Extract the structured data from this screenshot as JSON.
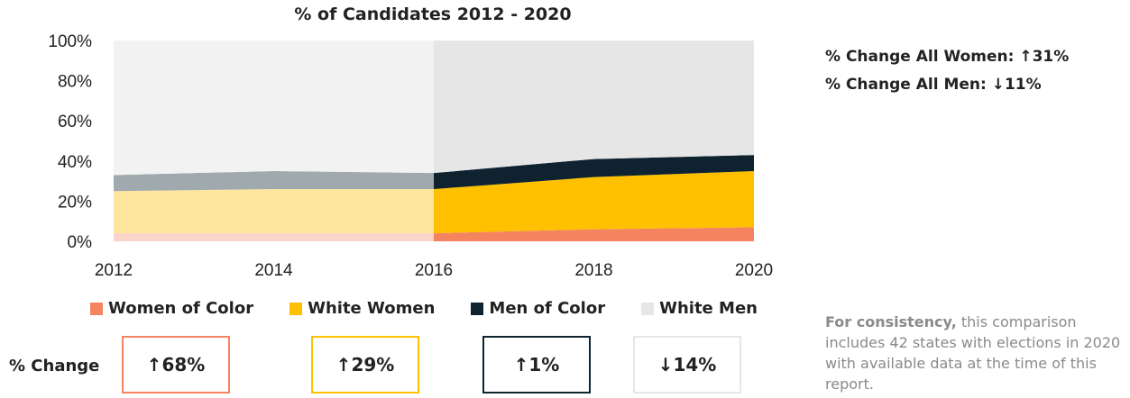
{
  "chart_data": {
    "type": "area",
    "title": "% of Candidates 2012 - 2020",
    "x": [
      2012,
      2014,
      2016,
      2018,
      2020
    ],
    "stacked": true,
    "highlight_from": 2016,
    "series": [
      {
        "name": "Women of Color",
        "values": [
          4,
          4,
          4,
          6,
          7
        ],
        "color": "#F4845F",
        "muted_color": "#FAD3C9"
      },
      {
        "name": "White Women",
        "values": [
          21,
          22,
          22,
          26,
          28
        ],
        "color": "#FFC000",
        "muted_color": "#FFE69F"
      },
      {
        "name": "Men of Color",
        "values": [
          8,
          9,
          8,
          9,
          8
        ],
        "color": "#0E2230",
        "muted_color": "#9FA9AE"
      },
      {
        "name": "White Men",
        "values": [
          67,
          65,
          66,
          59,
          57
        ],
        "color": "#E6E6E6",
        "muted_color": "#F2F2F2"
      }
    ],
    "ylim": [
      0,
      100
    ],
    "yticks": [
      "0%",
      "20%",
      "40%",
      "60%",
      "80%",
      "100%"
    ],
    "xticks": [
      "2012",
      "2014",
      "2016",
      "2018",
      "2020"
    ],
    "legend": "bottom"
  },
  "changes": {
    "label": "% Change",
    "items": [
      {
        "arrow": "↑",
        "text": "68%",
        "border": "#F4845F"
      },
      {
        "arrow": "↑",
        "text": "29%",
        "border": "#FFC000"
      },
      {
        "arrow": "↑",
        "text": "1%",
        "border": "#0E2230"
      },
      {
        "arrow": "↓",
        "text": "14%",
        "border": "#E6E6E6"
      }
    ]
  },
  "summary": {
    "women": "% Change All Women: ↑31%",
    "men": "% Change All Men: ↓11%"
  },
  "note": {
    "lead": "For consistency,",
    "body": " this comparison includes 42 states with elections in 2020 with available data at the time of this report."
  }
}
